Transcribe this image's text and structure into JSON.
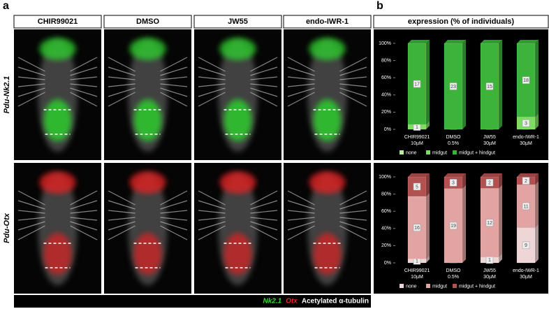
{
  "panels": [
    "a",
    "b"
  ],
  "columns": [
    "CHIR99021",
    "DMSO",
    "JW55",
    "endo-IWR-1"
  ],
  "rows": [
    "Pdu-Nk2.1",
    "Pdu-Otx"
  ],
  "chart_header": "expression (% of individuals)",
  "image_legend": [
    {
      "text": "Nk2.1",
      "color": "#33dd33"
    },
    {
      "text": "Otx",
      "color": "#ee2222"
    },
    {
      "text": "Acetylated α-tubulin",
      "color": "#ffffff"
    }
  ],
  "chart_data": [
    {
      "type": "bar",
      "stacked": true,
      "normalize": true,
      "categories": [
        [
          "CHIR99021",
          "10µM"
        ],
        [
          "DMSO",
          "0.5%"
        ],
        [
          "JW55",
          "30µM"
        ],
        [
          "endo-IWR-1",
          "30µM"
        ]
      ],
      "series": [
        {
          "name": "none",
          "color": "#b5ec9f",
          "values": [
            0,
            0,
            0,
            0
          ]
        },
        {
          "name": "midgut",
          "color": "#7fdc62",
          "values": [
            1,
            0,
            0,
            3
          ]
        },
        {
          "name": "midgut + hindgut",
          "color": "#3cb43a",
          "values": [
            17,
            23,
            15,
            18
          ]
        }
      ],
      "ylim": [
        0,
        100
      ],
      "yticks": [
        {
          "value": 0,
          "label": "0%"
        },
        {
          "value": 20,
          "label": "20%"
        },
        {
          "value": 40,
          "label": "40%"
        },
        {
          "value": 60,
          "label": "60%"
        },
        {
          "value": 80,
          "label": "80%"
        },
        {
          "value": 100,
          "label": "100%"
        }
      ]
    },
    {
      "type": "bar",
      "stacked": true,
      "normalize": true,
      "categories": [
        [
          "CHIR99021",
          "10µM"
        ],
        [
          "DMSO",
          "0.5%"
        ],
        [
          "JW55",
          "30µM"
        ],
        [
          "endo-IWR-1",
          "30µM"
        ]
      ],
      "series": [
        {
          "name": "none",
          "color": "#efd6d6",
          "values": [
            1,
            0,
            1,
            9
          ]
        },
        {
          "name": "midgut",
          "color": "#e2a3a3",
          "values": [
            16,
            19,
            12,
            11
          ]
        },
        {
          "name": "midgut + hindgut",
          "color": "#b35050",
          "values": [
            5,
            3,
            2,
            2
          ]
        }
      ],
      "ylim": [
        0,
        100
      ],
      "yticks": [
        {
          "value": 0,
          "label": "0%"
        },
        {
          "value": 20,
          "label": "20%"
        },
        {
          "value": 40,
          "label": "40%"
        },
        {
          "value": 60,
          "label": "60%"
        },
        {
          "value": 80,
          "label": "80%"
        },
        {
          "value": 100,
          "label": "100%"
        }
      ]
    }
  ]
}
